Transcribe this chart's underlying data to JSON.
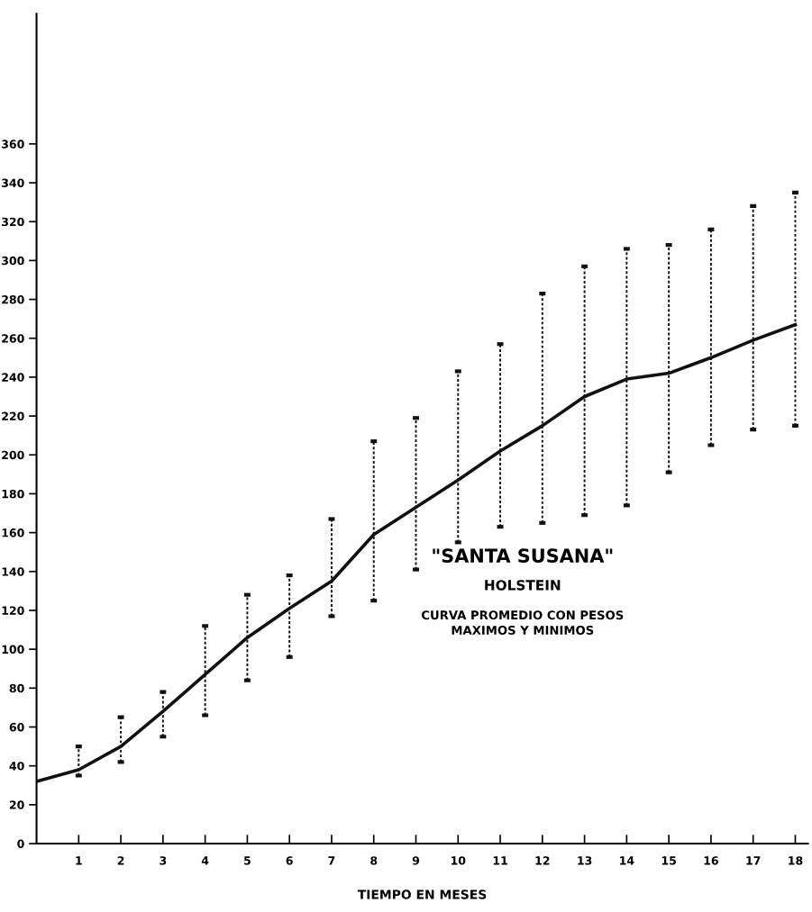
{
  "chart_data": {
    "type": "line",
    "xlabel": "TIEMPO EN MESES",
    "annotations": [
      "\"SANTA SUSANA\"",
      "HOLSTEIN",
      "CURVA PROMEDIO CON PESOS\nMAXIMOS Y MINIMOS"
    ],
    "x": [
      0,
      1,
      2,
      3,
      4,
      5,
      6,
      7,
      8,
      9,
      10,
      11,
      12,
      13,
      14,
      15,
      16,
      17,
      18
    ],
    "series": [
      {
        "color": "#111111",
        "values": [
          32,
          38,
          50,
          68,
          87,
          106,
          121,
          135,
          159,
          173,
          187,
          202,
          215,
          230,
          239,
          242,
          250,
          259,
          267
        ],
        "errors": [
          null,
          [
            35,
            50
          ],
          [
            42,
            65
          ],
          [
            55,
            78
          ],
          [
            66,
            112
          ],
          [
            84,
            128
          ],
          [
            96,
            138
          ],
          [
            117,
            167
          ],
          [
            125,
            207
          ],
          [
            141,
            219
          ],
          [
            155,
            243
          ],
          [
            163,
            257
          ],
          [
            165,
            283
          ],
          [
            169,
            297
          ],
          [
            174,
            306
          ],
          [
            191,
            308
          ],
          [
            205,
            316
          ],
          [
            213,
            328
          ],
          [
            215,
            335
          ]
        ]
      }
    ],
    "xlim": [
      0,
      18.3
    ],
    "ylim": [
      0,
      427
    ],
    "xticks": [
      1,
      2,
      3,
      4,
      5,
      6,
      7,
      8,
      9,
      10,
      11,
      12,
      13,
      14,
      15,
      16,
      17,
      18
    ],
    "yticks": [
      0,
      20,
      40,
      60,
      80,
      100,
      120,
      140,
      160,
      180,
      200,
      220,
      240,
      260,
      280,
      300,
      320,
      340,
      360
    ],
    "marker": "none",
    "line_style": "solid",
    "grid": false,
    "legend": false
  }
}
